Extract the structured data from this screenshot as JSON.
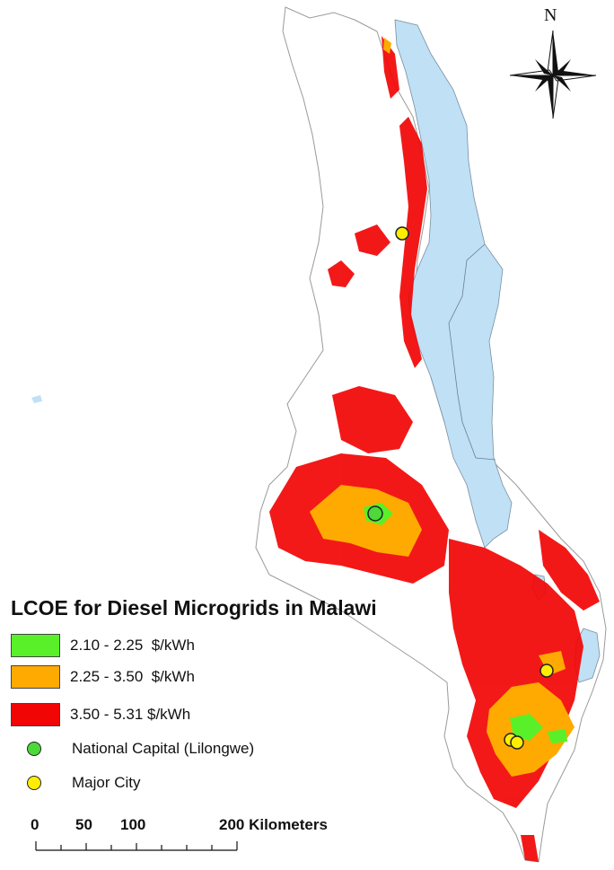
{
  "compass": {
    "north_label": "N"
  },
  "legend": {
    "title": "LCOE for Diesel Microgrids in Malawi",
    "classes": [
      {
        "label": "2.10 - 2.25  $/kWh",
        "color": "#59f029"
      },
      {
        "label": "2.25 - 3.50  $/kWh",
        "color": "#ffaa00"
      },
      {
        "label": "3.50 - 5.31 $/kWh",
        "color": "#f20505"
      }
    ],
    "points": [
      {
        "label": "National Capital (Lilongwe)",
        "color": "#4cd93a"
      },
      {
        "label": "Major City",
        "color": "#ffee00"
      }
    ]
  },
  "scale_bar": {
    "ticks": [
      "0",
      "50",
      "100"
    ],
    "end_label": "200 Kilometers"
  },
  "colors": {
    "lake": "#bfe0f5",
    "lake_border": "#7a8fa0",
    "land_border": "#9a9a9a"
  }
}
